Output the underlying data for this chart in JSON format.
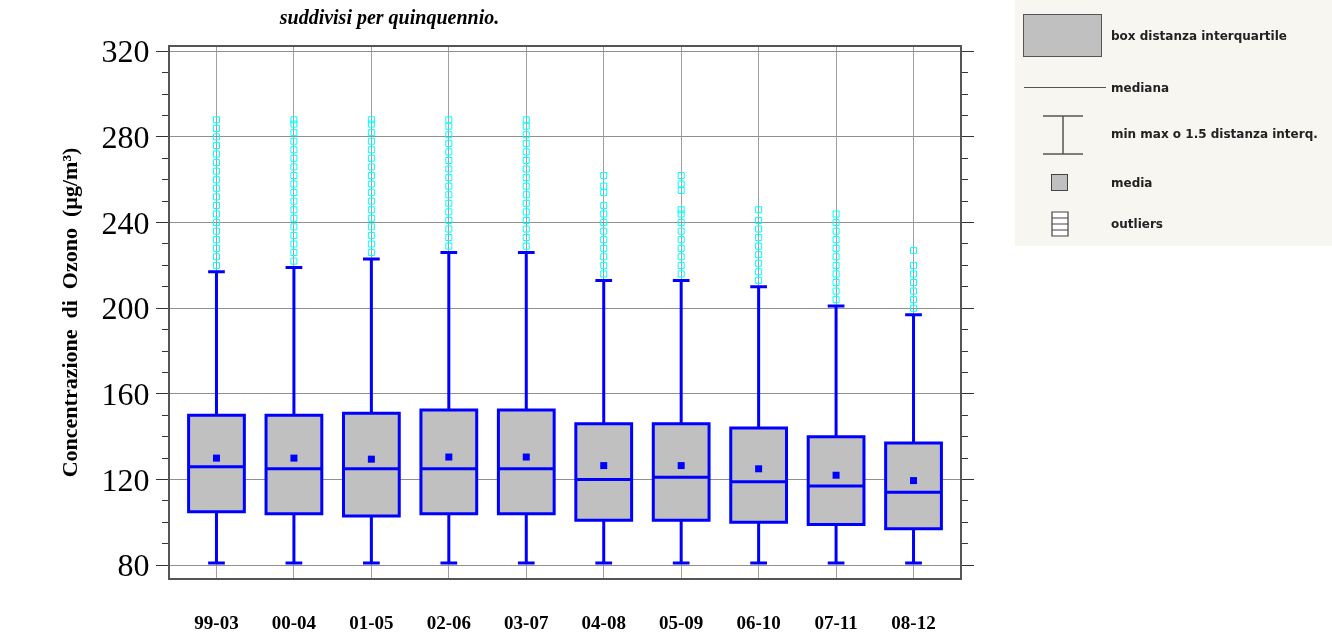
{
  "chart_data": {
    "type": "box",
    "title": "suddivisi per quinquennio.",
    "ylabel": "Concentrazione  di  Ozono  (µg/m³)",
    "categories": [
      "99-03",
      "00-04",
      "01-05",
      "02-06",
      "03-07",
      "04-08",
      "05-09",
      "06-10",
      "07-11",
      "08-12"
    ],
    "series": [
      {
        "color": "#0000ff",
        "boxes": [
          {
            "low": 81,
            "q1": 105,
            "median": 126,
            "q3": 150,
            "high": 217,
            "mean": 130,
            "outliers": [
              220,
              224,
              228,
              232,
              236,
              240,
              244,
              248,
              252,
              256,
              260,
              264,
              268,
              272,
              276,
              280,
              284,
              288
            ]
          },
          {
            "low": 81,
            "q1": 104,
            "median": 125,
            "q3": 150,
            "high": 219,
            "mean": 130,
            "outliers": [
              222,
              226,
              230,
              234,
              238,
              242,
              246,
              250,
              254,
              258,
              262,
              266,
              270,
              274,
              278,
              282,
              286,
              288
            ]
          },
          {
            "low": 81,
            "q1": 103,
            "median": 125,
            "q3": 151,
            "high": 223,
            "mean": 129.5,
            "outliers": [
              226,
              230,
              234,
              238,
              242,
              246,
              250,
              254,
              258,
              262,
              266,
              270,
              274,
              278,
              282,
              286,
              288
            ]
          },
          {
            "low": 81,
            "q1": 104,
            "median": 125,
            "q3": 152.5,
            "high": 226,
            "mean": 130.5,
            "outliers": [
              229,
              233,
              237,
              241,
              245,
              249,
              253,
              257,
              261,
              265,
              269,
              273,
              277,
              281,
              285,
              288
            ]
          },
          {
            "low": 81,
            "q1": 104,
            "median": 125,
            "q3": 152.5,
            "high": 226,
            "mean": 130.5,
            "outliers": [
              229,
              233,
              237,
              241,
              245,
              249,
              253,
              257,
              261,
              265,
              269,
              273,
              277,
              281,
              285,
              288
            ]
          },
          {
            "low": 81,
            "q1": 101,
            "median": 120,
            "q3": 146,
            "high": 213,
            "mean": 126.5,
            "outliers": [
              216,
              220,
              224,
              228,
              232,
              236,
              240,
              244,
              248,
              254,
              257,
              262
            ]
          },
          {
            "low": 81,
            "q1": 101,
            "median": 121,
            "q3": 146,
            "high": 213,
            "mean": 126.5,
            "outliers": [
              216,
              220,
              224,
              228,
              232,
              236,
              240,
              244,
              246,
              255,
              258,
              262
            ]
          },
          {
            "low": 81,
            "q1": 100,
            "median": 119,
            "q3": 144,
            "high": 210,
            "mean": 125,
            "outliers": [
              213,
              217,
              221,
              225,
              229,
              233,
              237,
              241,
              246
            ]
          },
          {
            "low": 81,
            "q1": 99,
            "median": 117,
            "q3": 140,
            "high": 201,
            "mean": 122,
            "outliers": [
              204,
              208,
              212,
              216,
              220,
              224,
              228,
              232,
              236,
              240,
              244
            ]
          },
          {
            "low": 81,
            "q1": 97,
            "median": 114,
            "q3": 137,
            "high": 197,
            "mean": 119.5,
            "outliers": [
              200,
              204,
              208,
              212,
              216,
              220,
              227
            ]
          }
        ]
      }
    ],
    "ylim": [
      74,
      322
    ],
    "yticks": [
      80,
      120,
      160,
      200,
      240,
      280,
      320
    ],
    "grid": true,
    "annotations": [
      "box distanza interquartile",
      "mediana",
      "min max o 1.5 distanza interq.",
      "media",
      "outliers"
    ]
  }
}
